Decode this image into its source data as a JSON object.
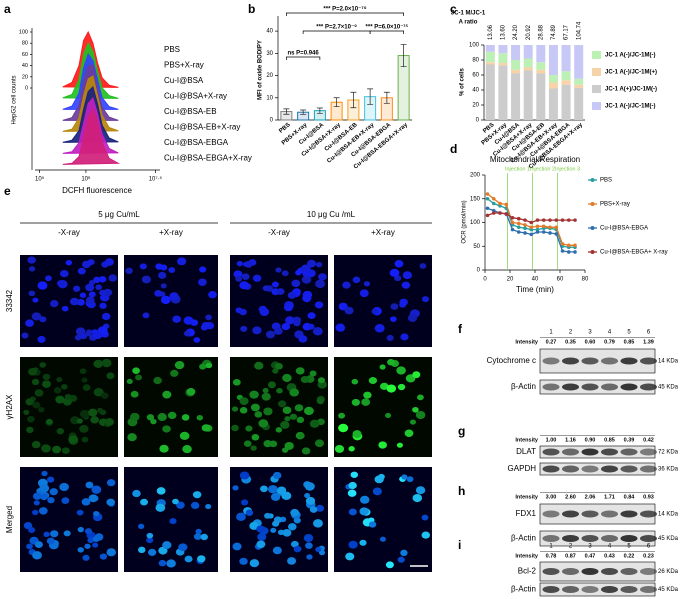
{
  "chart_data": [
    {
      "type": "ridgeline",
      "panel_label": "a",
      "x_label": "DCFH fluorescence",
      "y_label": "HepG2 cell counts",
      "x": [
        5.5,
        5.7,
        5.85,
        5.95,
        6.05,
        6.15,
        6.25,
        6.35,
        6.5,
        6.7
      ],
      "xlim": [
        4.9,
        7.6
      ],
      "xticks": [
        {
          "value": 5,
          "label": "10⁵"
        },
        {
          "value": 6,
          "label": "10⁶"
        },
        {
          "value": 7.5,
          "label": "10⁷·⁵"
        }
      ],
      "ylim": [
        0,
        100
      ],
      "yticks": [
        0,
        20,
        40,
        60,
        80,
        100
      ],
      "series": [
        {
          "name": "PBS",
          "color": "#ff1a1a",
          "values": [
            2,
            10,
            40,
            85,
            100,
            80,
            45,
            18,
            5,
            1
          ]
        },
        {
          "name": "PBS+X-ray",
          "color": "#22c022",
          "values": [
            2,
            8,
            35,
            80,
            100,
            85,
            50,
            20,
            6,
            1
          ]
        },
        {
          "name": "Cu-I@BSA",
          "color": "#3344ff",
          "values": [
            1,
            7,
            30,
            75,
            100,
            88,
            55,
            22,
            6,
            1
          ]
        },
        {
          "name": "Cu-I@BSA+X-ray",
          "color": "#6a3d9a",
          "values": [
            1,
            6,
            28,
            70,
            98,
            100,
            60,
            25,
            7,
            1
          ]
        },
        {
          "name": "Cu-I@BSA-EB",
          "color": "#b8860b",
          "values": [
            1,
            5,
            25,
            65,
            95,
            100,
            65,
            30,
            8,
            2
          ]
        },
        {
          "name": "Cu-I@BSA-EB+X-ray",
          "color": "#1a237e",
          "values": [
            1,
            5,
            22,
            60,
            92,
            100,
            70,
            32,
            9,
            2
          ]
        },
        {
          "name": "Cu-I@BSA-EBGA",
          "color": "#c020c0",
          "values": [
            1,
            4,
            20,
            55,
            90,
            100,
            72,
            35,
            10,
            2
          ]
        },
        {
          "name": "Cu-I@BSA-EBGA+X-ray",
          "color": "#d0207a",
          "values": [
            1,
            3,
            15,
            48,
            85,
            100,
            78,
            40,
            12,
            3
          ]
        }
      ]
    },
    {
      "type": "bar",
      "panel_label": "b",
      "y_label": "MFI of oxide BODIPY",
      "categories": [
        "PBS",
        "PBS+X-ray",
        "Cu-I@BSA",
        "Cu-I@BSA+X-ray",
        "Cu-I@BSA-EB",
        "Cu-I@BSA-EB+X-ray",
        "Cu-I@BSA-EBGA",
        "Cu-I@BSA-EBGA+X-ray"
      ],
      "values": [
        3.8,
        3.5,
        4.2,
        8,
        9,
        10.5,
        10,
        29
      ],
      "errors": [
        1.2,
        1.0,
        1.2,
        2,
        3.5,
        3.5,
        2.5,
        5
      ],
      "colors": [
        "#808080",
        "#1f77b4",
        "#17a2b8",
        "#ff8c00",
        "#f0a020",
        "#40c0e0",
        "#ff8c1a",
        "#6ab04c"
      ],
      "ylim": [
        0,
        45
      ],
      "yticks": [
        0,
        10,
        20,
        30,
        40
      ],
      "annotations": [
        "*** P=2.0×10⁻⁷⁹",
        "*** P=2.7×10⁻⁹",
        "*** P=6.0×10⁻¹⁵",
        "ns P=0.946"
      ]
    },
    {
      "type": "stacked_bar",
      "panel_label": "c",
      "y_label": "% of cells",
      "ratio_title": [
        "JC-1 M/JC-1",
        "A ratio"
      ],
      "ratio_labels": [
        "13.06",
        "13.60",
        "24.20",
        "20.92",
        "28.88",
        "74.89",
        "67.17",
        "104.74"
      ],
      "categories": [
        "PBS",
        "PBS+X-ray",
        "Cu-I@BSA",
        "Cu-I@BSA+X-ray",
        "Cu-I@BSA-EB",
        "Cu-I@BSA-EB+X-ray",
        "Cu-I@BSA-EBGA",
        "Cu-I@BSA-EBGA+X-ray"
      ],
      "ylim": [
        0,
        100
      ],
      "yticks": [
        0,
        20,
        40,
        60,
        80,
        100
      ],
      "series": [
        {
          "name": "JC-1 A(+)/JC-1M(-)",
          "color": "#cccccc",
          "values": [
            74,
            73,
            62,
            66,
            62,
            42,
            47,
            43
          ]
        },
        {
          "name": "JC-1 A(-)/JC-1M(+)",
          "color": "#f8d2a8",
          "values": [
            3,
            3,
            5,
            4,
            5,
            8,
            6,
            4
          ]
        },
        {
          "name": "JC-1 A(-)/JC-1M(-)",
          "color": "#bdf0b4",
          "values": [
            14,
            13,
            13,
            12,
            10,
            10,
            12,
            8
          ]
        },
        {
          "name": "JC-1 A(-)/JC-1M(-)",
          "color": "#c8c8f6",
          "values": [
            9,
            11,
            20,
            18,
            23,
            40,
            35,
            45
          ]
        }
      ]
    },
    {
      "type": "line",
      "panel_label": "d",
      "title": "Mitochondrial Respiration",
      "x_label": "Time (min)",
      "y_label": "OCR (pmol/min)",
      "x": [
        2,
        7,
        12,
        17,
        22,
        27,
        32,
        37,
        42,
        47,
        52,
        57,
        62,
        67,
        72
      ],
      "xlim": [
        0,
        80
      ],
      "xticks": [
        0,
        20,
        40,
        60,
        80
      ],
      "ylim": [
        0,
        200
      ],
      "yticks": [
        0,
        50,
        100,
        150,
        200
      ],
      "injections": [
        {
          "label": "Injection 1",
          "x": 18
        },
        {
          "label": "Injection 2",
          "x": 38
        },
        {
          "label": "Injection 3",
          "x": 58
        }
      ],
      "series": [
        {
          "name": "PBS",
          "color": "#2a9d9d",
          "values": [
            150,
            140,
            135,
            130,
            95,
            90,
            88,
            85,
            85,
            88,
            88,
            85,
            50,
            48,
            48
          ]
        },
        {
          "name": "PBS+X-ray",
          "color": "#e07b2a",
          "values": [
            160,
            150,
            140,
            138,
            100,
            98,
            95,
            90,
            92,
            92,
            90,
            90,
            55,
            52,
            52
          ]
        },
        {
          "name": "Cu-I@BSA-EBGA",
          "color": "#2f6fb0",
          "values": [
            130,
            125,
            120,
            118,
            85,
            80,
            78,
            75,
            80,
            80,
            78,
            76,
            40,
            38,
            38
          ]
        },
        {
          "name": "Cu-I@BSA-EBGA+ X-ray",
          "color": "#a33232",
          "values": [
            115,
            120,
            120,
            118,
            110,
            108,
            105,
            100,
            105,
            105,
            105,
            105,
            105,
            105,
            105
          ]
        }
      ]
    }
  ],
  "panel_e": {
    "panel_label": "e",
    "groups": [
      "5 μg Cu/mL",
      "10 μg Cu /mL"
    ],
    "columns": [
      "-X-ray",
      "+X-ray",
      "-X-ray",
      "+X-ray"
    ],
    "rows": [
      "33342",
      "γH2AX",
      "Merged"
    ]
  },
  "blots": [
    {
      "panel_label": "f",
      "lanes": [
        1,
        2,
        3,
        4,
        5,
        6
      ],
      "intensity_label": "Intensity",
      "intensities": [
        "0.27",
        "0.35",
        "0.60",
        "0.79",
        "0.85",
        "1.39"
      ],
      "rows": [
        {
          "protein": "Cytochrome c",
          "size": "14 KDa"
        },
        {
          "protein": "β-Actin",
          "size": "45 KDa"
        }
      ]
    },
    {
      "panel_label": "g",
      "intensity_label": "Intensity",
      "intensities": [
        "1.00",
        "1.16",
        "0.90",
        "0.85",
        "0.39",
        "0.42"
      ],
      "rows": [
        {
          "protein": "DLAT",
          "size": "72 KDa"
        },
        {
          "protein": "GAPDH",
          "size": "36 KDa"
        }
      ]
    },
    {
      "panel_label": "h",
      "intensity_label": "Intensity",
      "intensities": [
        "3.00",
        "2.60",
        "2.06",
        "1.71",
        "0.84",
        "0.93"
      ],
      "rows": [
        {
          "protein": "FDX1",
          "size": "14 KDa"
        },
        {
          "protein": "β-Actin",
          "size": "45 KDa"
        }
      ]
    },
    {
      "panel_label": "i",
      "lanes": [
        1,
        2,
        3,
        4,
        5,
        6
      ],
      "intensity_label": "Intensity",
      "intensities": [
        "0.78",
        "0.87",
        "0.47",
        "0.43",
        "0.22",
        "0.23"
      ],
      "rows": [
        {
          "protein": "Bcl-2",
          "size": "26 KDa"
        },
        {
          "protein": "β-Actin",
          "size": "45 KDa"
        }
      ]
    }
  ]
}
